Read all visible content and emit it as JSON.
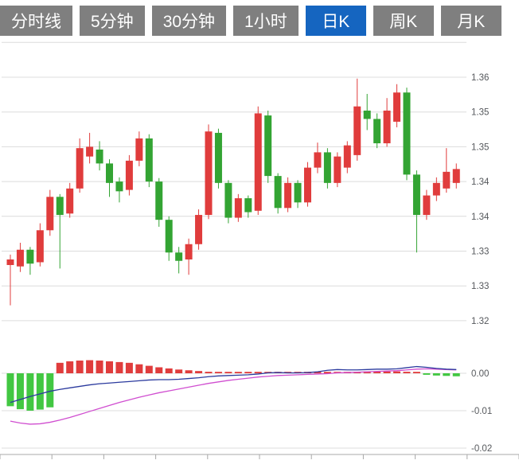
{
  "toolbar": {
    "tabs": [
      {
        "label": "分时线",
        "active": false
      },
      {
        "label": "5分钟",
        "active": false
      },
      {
        "label": "30分钟",
        "active": false
      },
      {
        "label": "1小时",
        "active": false
      },
      {
        "label": "日K",
        "active": true
      },
      {
        "label": "周K",
        "active": false
      },
      {
        "label": "月K",
        "active": false
      }
    ]
  },
  "colors": {
    "up": "#e03c3c",
    "down": "#33a433",
    "hist_up": "#e03c3c",
    "hist_down": "#42c742",
    "dif_line": "#2b3a9e",
    "dea_line": "#d04ed0",
    "grid": "#dcdcdc",
    "axis_line": "#a8a8a8",
    "axis_text": "#55585c",
    "tab_bg": "#7f7f7f",
    "tab_active_bg": "#1565c0",
    "tab_text": "#ffffff"
  },
  "chart_data": {
    "type": "candlestick+macd",
    "main": {
      "type": "candlestick",
      "y_axis": {
        "labels": [
          "1.36",
          "1.35",
          "1.35",
          "1.34",
          "1.34",
          "1.33",
          "1.33",
          "1.32"
        ],
        "values": [
          1.36,
          1.355,
          1.35,
          1.345,
          1.34,
          1.335,
          1.33,
          1.325
        ],
        "top_value": 1.365,
        "grid_step": 0.005
      },
      "candle_format": [
        "open",
        "close",
        "high",
        "low"
      ],
      "candles": [
        [
          1.333,
          1.3338,
          1.3345,
          1.3272
        ],
        [
          1.3328,
          1.3352,
          1.3362,
          1.332
        ],
        [
          1.3352,
          1.3332,
          1.3356,
          1.3316
        ],
        [
          1.3334,
          1.338,
          1.339,
          1.3328
        ],
        [
          1.338,
          1.3428,
          1.3438,
          1.3372
        ],
        [
          1.3428,
          1.3402,
          1.3432,
          1.3325
        ],
        [
          1.3404,
          1.344,
          1.3448,
          1.3398
        ],
        [
          1.344,
          1.3498,
          1.3512,
          1.3434
        ],
        [
          1.3486,
          1.35,
          1.352,
          1.3476
        ],
        [
          1.3496,
          1.3476,
          1.3508,
          1.3466
        ],
        [
          1.3476,
          1.3448,
          1.3482,
          1.3428
        ],
        [
          1.345,
          1.3436,
          1.3456,
          1.342
        ],
        [
          1.3438,
          1.348,
          1.3488,
          1.343
        ],
        [
          1.348,
          1.3512,
          1.3522,
          1.3472
        ],
        [
          1.3512,
          1.345,
          1.3518,
          1.3442
        ],
        [
          1.345,
          1.3395,
          1.3455,
          1.3385
        ],
        [
          1.3395,
          1.3348,
          1.34,
          1.3336
        ],
        [
          1.3348,
          1.3336,
          1.3356,
          1.3318
        ],
        [
          1.3338,
          1.336,
          1.3368,
          1.3316
        ],
        [
          1.336,
          1.3402,
          1.341,
          1.3352
        ],
        [
          1.3402,
          1.3522,
          1.3532,
          1.3396
        ],
        [
          1.352,
          1.3448,
          1.3526,
          1.344
        ],
        [
          1.3448,
          1.3398,
          1.3452,
          1.339
        ],
        [
          1.3398,
          1.3426,
          1.3432,
          1.3392
        ],
        [
          1.3426,
          1.3406,
          1.343,
          1.3398
        ],
        [
          1.3408,
          1.3548,
          1.3558,
          1.3402
        ],
        [
          1.3545,
          1.3458,
          1.3552,
          1.3448
        ],
        [
          1.3458,
          1.3412,
          1.3462,
          1.3404
        ],
        [
          1.3412,
          1.3448,
          1.3456,
          1.3406
        ],
        [
          1.3448,
          1.342,
          1.3452,
          1.3412
        ],
        [
          1.342,
          1.347,
          1.3478,
          1.3414
        ],
        [
          1.347,
          1.3492,
          1.3506,
          1.3462
        ],
        [
          1.3492,
          1.3448,
          1.3498,
          1.344
        ],
        [
          1.3448,
          1.3486,
          1.3492,
          1.3442
        ],
        [
          1.347,
          1.3502,
          1.3508,
          1.3462
        ],
        [
          1.3488,
          1.3558,
          1.3598,
          1.348
        ],
        [
          1.3552,
          1.354,
          1.3576,
          1.3524
        ],
        [
          1.354,
          1.3505,
          1.3548,
          1.3498
        ],
        [
          1.3505,
          1.3552,
          1.357,
          1.35
        ],
        [
          1.3536,
          1.3578,
          1.359,
          1.3528
        ],
        [
          1.3578,
          1.346,
          1.3585,
          1.3452
        ],
        [
          1.346,
          1.3402,
          1.3466,
          1.3348
        ],
        [
          1.3402,
          1.343,
          1.3438,
          1.3395
        ],
        [
          1.343,
          1.3448,
          1.3456,
          1.3422
        ],
        [
          1.344,
          1.3464,
          1.3498,
          1.3434
        ],
        [
          1.3448,
          1.3468,
          1.3476,
          1.344
        ]
      ]
    },
    "macd": {
      "type": "bar+line",
      "y_axis": {
        "labels": [
          "0.00",
          "-0.01",
          "-0.02"
        ],
        "values": [
          0,
          -0.01,
          -0.02
        ]
      },
      "histogram": [
        -0.0088,
        -0.0096,
        -0.01,
        -0.0097,
        -0.0091,
        0.0028,
        0.0032,
        0.0034,
        0.0035,
        0.0034,
        0.0032,
        0.003,
        0.0028,
        0.0024,
        0.002,
        0.0016,
        0.0013,
        0.001,
        0.0008,
        0.0006,
        0.0004,
        0.0003,
        0.0002,
        0.0001,
        0.0001,
        0.0002,
        0.0002,
        0.0001,
        0.0001,
        0.0001,
        0.0002,
        0.0002,
        0.0002,
        0.0002,
        0.0003,
        0.0004,
        0.0005,
        0.0005,
        0.0005,
        0.0005,
        0.0004,
        0.0003,
        -0.0004,
        -0.0006,
        -0.0007,
        -0.0008
      ],
      "series": [
        {
          "name": "DIF",
          "values": [
            -0.0078,
            -0.007,
            -0.0062,
            -0.0055,
            -0.0048,
            -0.0043,
            -0.0039,
            -0.0035,
            -0.0031,
            -0.0028,
            -0.0026,
            -0.0024,
            -0.0022,
            -0.002,
            -0.0018,
            -0.0017,
            -0.0017,
            -0.0016,
            -0.0014,
            -0.0012,
            -0.0009,
            -0.0007,
            -0.0006,
            -0.0005,
            -0.0004,
            -0.0002,
            0.0001,
            0.0002,
            0.0001,
            0.0001,
            0.0002,
            0.0004,
            0.0008,
            0.001,
            0.0009,
            0.0009,
            0.001,
            0.0011,
            0.0011,
            0.0012,
            0.0015,
            0.0018,
            0.0016,
            0.0013,
            0.0011,
            0.001
          ]
        },
        {
          "name": "DEA",
          "values": [
            -0.0128,
            -0.0133,
            -0.0136,
            -0.0135,
            -0.0131,
            -0.0125,
            -0.0118,
            -0.011,
            -0.0102,
            -0.0094,
            -0.0086,
            -0.0078,
            -0.0071,
            -0.0064,
            -0.0058,
            -0.0052,
            -0.0047,
            -0.0042,
            -0.0037,
            -0.0032,
            -0.0027,
            -0.0023,
            -0.0019,
            -0.0016,
            -0.0013,
            -0.001,
            -0.0008,
            -0.0006,
            -0.0005,
            -0.0004,
            -0.0003,
            -0.0002,
            -0.0001,
            0.0001,
            0.0002,
            0.0003,
            0.0004,
            0.0005,
            0.0006,
            0.0007,
            0.0009,
            0.0011,
            0.0012,
            0.0011,
            0.001,
            0.0009
          ]
        }
      ]
    }
  }
}
